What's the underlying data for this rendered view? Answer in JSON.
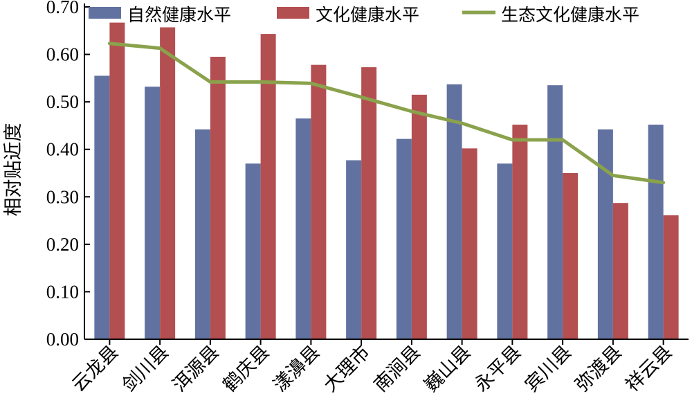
{
  "chart_data": {
    "type": "bar",
    "title": "",
    "xlabel": "",
    "ylabel": "相对贴近度",
    "ylim": [
      0,
      0.7
    ],
    "yticks": [
      "0.00",
      "0.10",
      "0.20",
      "0.30",
      "0.40",
      "0.50",
      "0.60",
      "0.70"
    ],
    "categories": [
      "云龙县",
      "剑川县",
      "洱源县",
      "鹤庆县",
      "漾濞县",
      "大理市",
      "南涧县",
      "巍山县",
      "永平县",
      "宾川县",
      "弥渡县",
      "祥云县"
    ],
    "series": [
      {
        "name": "自然健康水平",
        "type": "bar",
        "color": "#6272a0",
        "values": [
          0.555,
          0.532,
          0.442,
          0.37,
          0.465,
          0.377,
          0.422,
          0.537,
          0.37,
          0.535,
          0.442,
          0.452
        ]
      },
      {
        "name": "文化健康水平",
        "type": "bar",
        "color": "#b34f51",
        "values": [
          0.667,
          0.657,
          0.595,
          0.643,
          0.578,
          0.573,
          0.515,
          0.402,
          0.452,
          0.35,
          0.287,
          0.261
        ]
      },
      {
        "name": "生态文化健康水平",
        "type": "line",
        "color": "#8aa24c",
        "values": [
          0.623,
          0.613,
          0.542,
          0.542,
          0.539,
          0.51,
          0.48,
          0.455,
          0.42,
          0.42,
          0.345,
          0.33
        ]
      }
    ],
    "legend_position": "top",
    "grid": false
  }
}
